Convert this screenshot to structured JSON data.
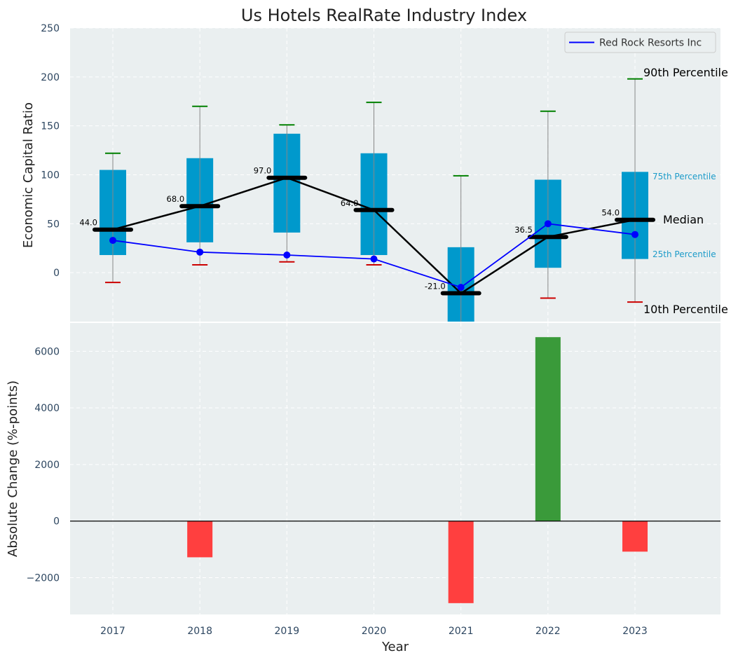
{
  "chart_data": [
    {
      "type": "box",
      "title": "Us Hotels RealRate Industry Index",
      "ylabel": "Economic Capital Ratio",
      "ylim": [
        -50,
        250
      ],
      "yticks": [
        0,
        50,
        100,
        150,
        200,
        250
      ],
      "categories": [
        "2017",
        "2018",
        "2019",
        "2020",
        "2021",
        "2022",
        "2023"
      ],
      "boxes": [
        {
          "year": "2017",
          "p10": -10,
          "p25": 18,
          "median": 44.0,
          "p75": 105,
          "p90": 122
        },
        {
          "year": "2018",
          "p10": 8,
          "p25": 31,
          "median": 68.0,
          "p75": 117,
          "p90": 170
        },
        {
          "year": "2019",
          "p10": 11,
          "p25": 41,
          "median": 97.0,
          "p75": 142,
          "p90": 151
        },
        {
          "year": "2020",
          "p10": 8,
          "p25": 18,
          "median": 64.0,
          "p75": 122,
          "p90": 174
        },
        {
          "year": "2021",
          "p10": -68,
          "p25": -68,
          "median": -21.0,
          "p75": 26,
          "p90": 99
        },
        {
          "year": "2022",
          "p10": -26,
          "p25": 5,
          "median": 36.5,
          "p75": 95,
          "p90": 165
        },
        {
          "year": "2023",
          "p10": -30,
          "p25": 14,
          "median": 54.0,
          "p75": 103,
          "p90": 198
        }
      ],
      "median_labels": [
        "44.0",
        "68.0",
        "97.0",
        "64.0",
        "-21.0",
        "36.5",
        "54.0"
      ],
      "series": [
        {
          "name": "Red Rock Resorts Inc",
          "color": "#0000ff",
          "values": [
            33,
            21,
            18,
            14,
            -15,
            50,
            39
          ]
        }
      ],
      "annotations": {
        "p90": "90th Percentile",
        "p75": "75th Percentile",
        "median": "Median",
        "p25": "25th Percentile",
        "p10": "10th Percentile"
      },
      "legend": "top-right",
      "grid": true
    },
    {
      "type": "bar",
      "xlabel": "Year",
      "ylabel": "Absolute Change (%-points)",
      "ylim": [
        -3300,
        7000
      ],
      "yticks": [
        -2000,
        0,
        2000,
        4000,
        6000
      ],
      "ytick_labels": [
        "−2000",
        "0",
        "2000",
        "4000",
        "6000"
      ],
      "categories": [
        "2017",
        "2018",
        "2019",
        "2020",
        "2021",
        "2022",
        "2023"
      ],
      "values": [
        0,
        -1280,
        0,
        0,
        -2900,
        6500,
        -1080
      ],
      "colors": {
        "positive": "#3a9a3a",
        "negative": "#ff3f3f"
      },
      "grid": true
    }
  ],
  "colors": {
    "panel_bg": "#eaeff0",
    "box_fill": "#0099cc",
    "p90_cap": "#008000",
    "p10_cap": "#cc0000",
    "whisker": "#888888",
    "median": "#000000"
  }
}
